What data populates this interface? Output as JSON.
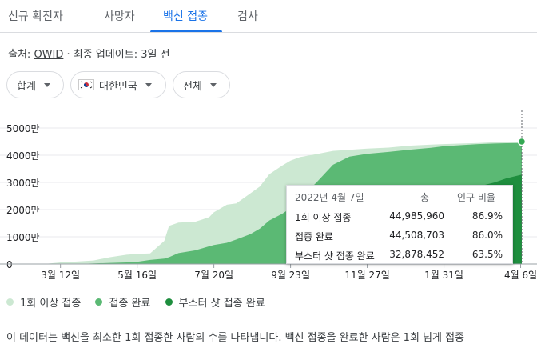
{
  "tabs": [
    {
      "label": "신규 확진자"
    },
    {
      "label": "사망자"
    },
    {
      "label": "백신 접종",
      "active": true
    },
    {
      "label": "검사"
    }
  ],
  "source": {
    "prefix": "출처:",
    "link": "OWID",
    "suffix": "· 최종 업데이트: 3일 전"
  },
  "filters": {
    "total": "합계",
    "country": "대한민국",
    "scope": "전체"
  },
  "tooltip": {
    "date": "2022년 4월 7일",
    "col_total": "총",
    "col_pct": "인구 비율",
    "rows": [
      {
        "label": "1회 이상 접종",
        "value": "44,985,960",
        "pct": "86.9%"
      },
      {
        "label": "접종 완료",
        "value": "44,508,703",
        "pct": "86.0%"
      },
      {
        "label": "부스터 샷 접종 완료",
        "value": "32,878,452",
        "pct": "63.5%"
      }
    ]
  },
  "legend": [
    {
      "label": "1회 이상 접종",
      "color": "#cce8d2"
    },
    {
      "label": "접종 완료",
      "color": "#5bb974"
    },
    {
      "label": "부스터 샷 접종 완료",
      "color": "#1e8e3e"
    }
  ],
  "description": "이 데이터는 백신을 최소한 1회 접종한 사람의 수를 나타냅니다. 백신 접종을 완료한 사람은 1회 넘게 접종",
  "chart_data": {
    "type": "area",
    "x": [
      "2021-02-26",
      "2021-03-12",
      "2021-03-26",
      "2021-04-09",
      "2021-04-23",
      "2021-05-07",
      "2021-05-16",
      "2021-05-27",
      "2021-06-08",
      "2021-06-12",
      "2021-06-20",
      "2021-07-04",
      "2021-07-16",
      "2021-07-20",
      "2021-07-31",
      "2021-08-08",
      "2021-08-20",
      "2021-08-28",
      "2021-09-05",
      "2021-09-16",
      "2021-09-23",
      "2021-10-01",
      "2021-10-15",
      "2021-10-29",
      "2021-11-12",
      "2021-11-27",
      "2021-12-15",
      "2022-01-01",
      "2022-01-20",
      "2022-01-31",
      "2022-02-15",
      "2022-03-01",
      "2022-03-15",
      "2022-03-25",
      "2022-04-07"
    ],
    "series": [
      {
        "name": "1회 이상 접종",
        "values": [
          0.0,
          0.6,
          0.9,
          1.3,
          2.5,
          3.4,
          3.7,
          3.9,
          8.5,
          14.0,
          15.2,
          15.5,
          17.2,
          19.0,
          21.8,
          22.3,
          26.0,
          28.5,
          33.0,
          36.2,
          38.0,
          39.3,
          40.4,
          41.6,
          42.0,
          42.4,
          42.8,
          43.5,
          43.9,
          44.1,
          44.3,
          44.5,
          44.8,
          44.9,
          44.99
        ]
      },
      {
        "name": "접종 완료",
        "values": [
          0,
          0,
          0,
          0.2,
          0.4,
          0.6,
          0.8,
          1.5,
          2.0,
          2.5,
          4.0,
          5.0,
          6.5,
          7.0,
          7.8,
          9.0,
          11.0,
          13.0,
          16.0,
          18.5,
          20.5,
          24.0,
          30.0,
          36.5,
          39.5,
          40.5,
          41.2,
          42.0,
          42.7,
          43.3,
          43.7,
          44.1,
          44.3,
          44.4,
          44.51
        ]
      },
      {
        "name": "부스터 샷 접종 완료",
        "values": [
          0,
          0,
          0,
          0,
          0,
          0,
          0,
          0,
          0,
          0,
          0,
          0,
          0,
          0,
          0,
          0,
          0,
          0,
          0,
          0,
          0,
          0,
          0.1,
          0.3,
          0.8,
          1.5,
          5.0,
          13.0,
          18.0,
          21.0,
          26.5,
          28.5,
          30.0,
          31.5,
          32.88
        ]
      }
    ],
    "y_unit": "만명",
    "x_tick_labels": [
      "3월 12일",
      "5월 16일",
      "7월 20일",
      "9월 23일",
      "11월 27일",
      "1월 31일",
      "4월 6일"
    ],
    "x_tick_dates": [
      "2021-03-12",
      "2021-05-16",
      "2021-07-20",
      "2021-09-23",
      "2021-11-27",
      "2022-01-31",
      "2022-04-06"
    ],
    "y_tick_labels": [
      "0",
      "1000만",
      "2000만",
      "3000만",
      "4000만",
      "5000만"
    ],
    "y_tick_values": [
      0,
      10,
      20,
      30,
      40,
      50
    ],
    "ylim": [
      0,
      50
    ]
  }
}
